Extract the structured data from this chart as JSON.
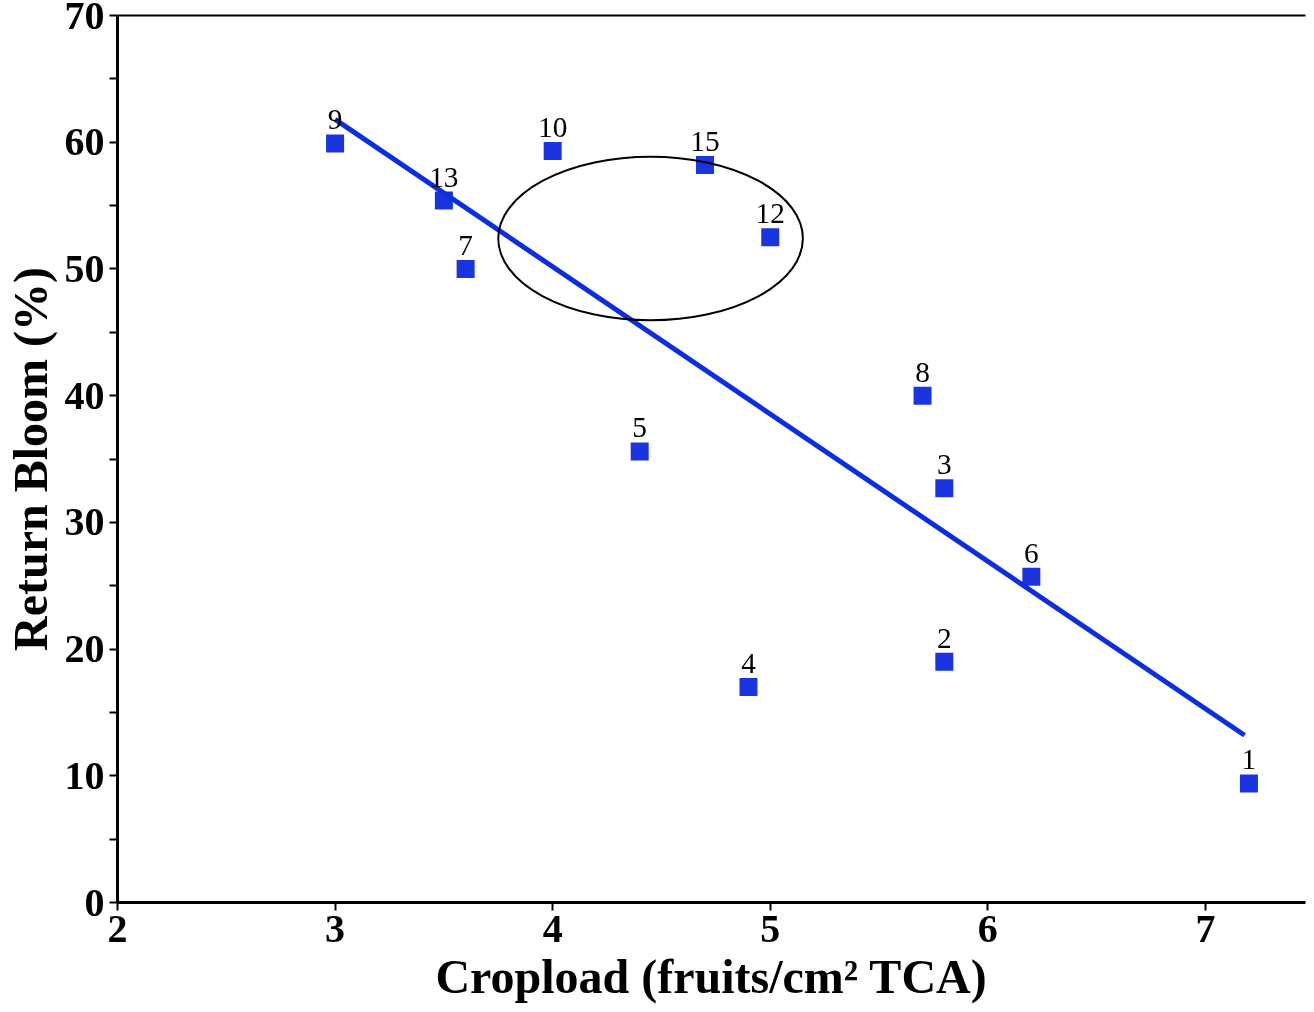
{
  "chart_data": {
    "type": "scatter",
    "xlabel": "Cropload (fruits/cm² TCA)",
    "ylabel": "Return Bloom (%)",
    "xlim": [
      2,
      7.46
    ],
    "ylim": [
      0,
      70
    ],
    "xticks": [
      2,
      3,
      4,
      5,
      6,
      7
    ],
    "yticks": [
      0,
      {
        "value": 5,
        "label": null
      },
      10,
      {
        "value": 15,
        "label": null
      },
      20,
      {
        "value": 25,
        "label": null
      },
      30,
      {
        "value": 35,
        "label": null
      },
      40,
      {
        "value": 45,
        "label": null
      },
      50,
      {
        "value": 55,
        "label": null
      },
      60,
      {
        "value": 65,
        "label": null
      },
      70
    ],
    "series": [
      {
        "marker": "square",
        "color": "#1a35e0",
        "x": [
          3.0,
          3.5,
          3.6,
          4.0,
          4.7,
          5.0,
          4.4,
          4.9,
          5.7,
          5.8,
          6.2,
          5.8,
          7.2
        ],
        "values": [
          59.9,
          55.4,
          50.0,
          59.3,
          58.2,
          52.5,
          35.6,
          17.0,
          40.0,
          32.7,
          25.7,
          19.0,
          9.4
        ]
      },
      {
        "type": "line",
        "color": "#0a2ee0",
        "x": [
          3.0,
          7.18
        ],
        "values": [
          61.8,
          13.2
        ]
      }
    ],
    "annotations": [
      {
        "text": "9",
        "x": 3.0,
        "y": 59.9
      },
      {
        "text": "13",
        "x": 3.5,
        "y": 55.4
      },
      {
        "text": "7",
        "x": 3.6,
        "y": 50.0
      },
      {
        "text": "10",
        "x": 4.0,
        "y": 59.3
      },
      {
        "text": "15",
        "x": 4.7,
        "y": 58.2
      },
      {
        "text": "12",
        "x": 5.0,
        "y": 52.5
      },
      {
        "text": "5",
        "x": 4.4,
        "y": 35.6
      },
      {
        "text": "4",
        "x": 4.9,
        "y": 17.0
      },
      {
        "text": "8",
        "x": 5.7,
        "y": 40.0
      },
      {
        "text": "3",
        "x": 5.8,
        "y": 32.7
      },
      {
        "text": "6",
        "x": 6.2,
        "y": 25.7
      },
      {
        "text": "2",
        "x": 5.8,
        "y": 19.0
      },
      {
        "text": "1",
        "x": 7.2,
        "y": 9.4
      }
    ]
  }
}
